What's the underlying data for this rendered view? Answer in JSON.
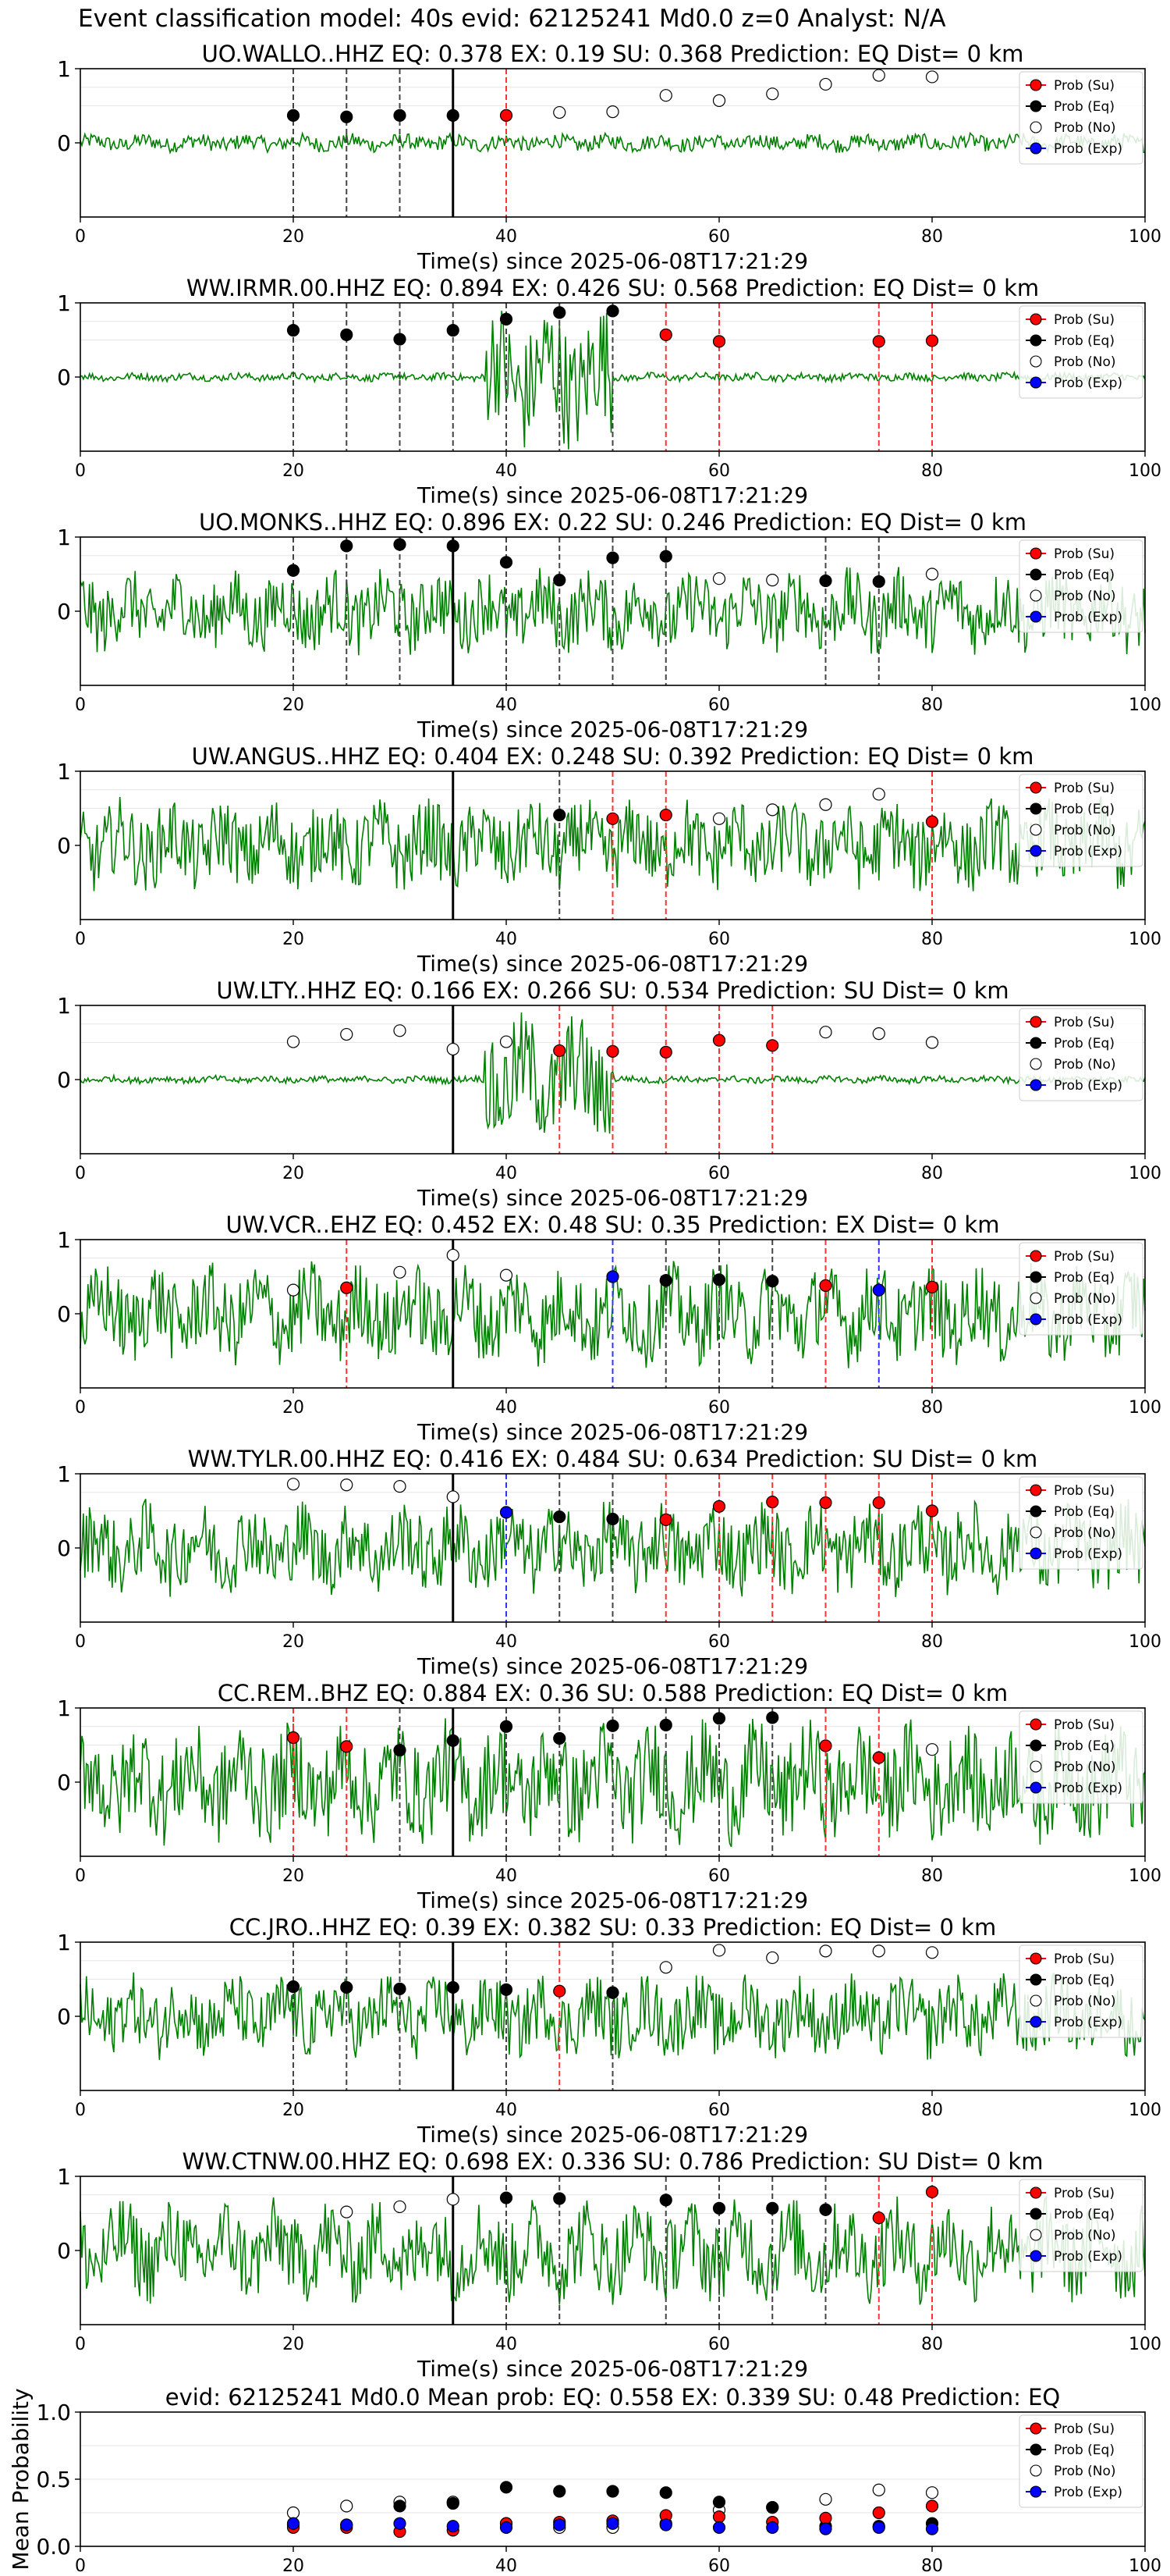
{
  "figure": {
    "suptitle": "Event classification model: 40s evid: 62125241 Md0.0 z=0 Analyst: N/A"
  },
  "legend_labels": [
    "Prob (Su)",
    "Prob (Eq)",
    "Prob (No)",
    "Prob (Exp)"
  ],
  "colors": {
    "su": "#ff0000",
    "eq": "#000000",
    "no": "#ffffff",
    "exp": "#0000ff",
    "waveform": "#008000"
  },
  "chart_data": [
    {
      "type": "line",
      "title": "UO.WALLO..HHZ   EQ: 0.378  EX: 0.19  SU: 0.368   Prediction: EQ    Dist= 0 km",
      "xlabel": "Time(s) since 2025-06-08T17:21:29",
      "xlim": [
        0,
        100
      ],
      "ylim": [
        -1,
        1
      ],
      "xticks": [
        0,
        20,
        40,
        60,
        80,
        100
      ],
      "yticks": [
        0,
        1
      ],
      "waveform_amplitude": 0.1,
      "origin_time": 35,
      "x": [
        20,
        25,
        30,
        35,
        40,
        45,
        50,
        55,
        60,
        65,
        70,
        75,
        80
      ],
      "prediction_class": [
        "Eq",
        "Eq",
        "Eq",
        "Eq",
        "Su",
        "No",
        "No",
        "No",
        "No",
        "No",
        "No",
        "No",
        "No"
      ],
      "prediction_prob": [
        0.37,
        0.35,
        0.37,
        0.37,
        0.37,
        0.41,
        0.42,
        0.64,
        0.57,
        0.66,
        0.79,
        0.91,
        0.89
      ]
    },
    {
      "type": "line",
      "title": "WW.IRMR.00.HHZ   EQ: 0.894  EX: 0.426  SU: 0.568   Prediction: EQ    Dist= 0 km",
      "xlabel": "Time(s) since 2025-06-08T17:21:29",
      "xlim": [
        0,
        100
      ],
      "ylim": [
        -1,
        1
      ],
      "xticks": [
        0,
        20,
        40,
        60,
        80,
        100
      ],
      "yticks": [
        0,
        1
      ],
      "waveform_amplitude": 0.8,
      "origin_time": null,
      "x": [
        20,
        25,
        30,
        35,
        40,
        45,
        50,
        55,
        60,
        75,
        80
      ],
      "prediction_class": [
        "Eq",
        "Eq",
        "Eq",
        "Eq",
        "Eq",
        "Eq",
        "Eq",
        "Su",
        "Su",
        "Su",
        "Su"
      ],
      "prediction_prob": [
        0.63,
        0.57,
        0.51,
        0.63,
        0.78,
        0.87,
        0.89,
        0.57,
        0.48,
        0.48,
        0.49
      ]
    },
    {
      "type": "line",
      "title": "UO.MONKS..HHZ   EQ: 0.896  EX: 0.22  SU: 0.246   Prediction: EQ    Dist= 0 km",
      "xlabel": "Time(s) since 2025-06-08T17:21:29",
      "xlim": [
        0,
        100
      ],
      "ylim": [
        -1,
        1
      ],
      "xticks": [
        0,
        20,
        40,
        60,
        80,
        100
      ],
      "yticks": [
        0,
        1
      ],
      "waveform_amplitude": 0.45,
      "origin_time": 35,
      "x": [
        20,
        25,
        30,
        35,
        40,
        45,
        50,
        55,
        60,
        65,
        70,
        75,
        80
      ],
      "prediction_class": [
        "Eq",
        "Eq",
        "Eq",
        "Eq",
        "Eq",
        "Eq",
        "Eq",
        "Eq",
        "No",
        "No",
        "Eq",
        "Eq",
        "No"
      ],
      "prediction_prob": [
        0.55,
        0.88,
        0.9,
        0.88,
        0.66,
        0.42,
        0.72,
        0.74,
        0.44,
        0.42,
        0.41,
        0.4,
        0.5
      ]
    },
    {
      "type": "line",
      "title": "UW.ANGUS..HHZ   EQ: 0.404  EX: 0.248  SU: 0.392   Prediction: EQ    Dist= 0 km",
      "xlabel": "Time(s) since 2025-06-08T17:21:29",
      "xlim": [
        0,
        100
      ],
      "ylim": [
        -1,
        1
      ],
      "xticks": [
        0,
        20,
        40,
        60,
        80,
        100
      ],
      "yticks": [
        0,
        1
      ],
      "waveform_amplitude": 0.5,
      "origin_time": 35,
      "x": [
        45,
        50,
        55,
        60,
        65,
        70,
        75,
        80
      ],
      "prediction_class": [
        "Eq",
        "Su",
        "Su",
        "No",
        "No",
        "No",
        "No",
        "Su"
      ],
      "prediction_prob": [
        0.41,
        0.36,
        0.41,
        0.36,
        0.48,
        0.55,
        0.69,
        0.32
      ]
    },
    {
      "type": "line",
      "title": "UW.LTY..HHZ   EQ: 0.166  EX: 0.266  SU: 0.534   Prediction: SU    Dist= 0 km",
      "xlabel": "Time(s) since 2025-06-08T17:21:29",
      "xlim": [
        0,
        100
      ],
      "ylim": [
        -1,
        1
      ],
      "xticks": [
        0,
        20,
        40,
        60,
        80,
        100
      ],
      "yticks": [
        0,
        1
      ],
      "waveform_amplitude": 0.7,
      "origin_time": 35,
      "x": [
        20,
        25,
        30,
        35,
        40,
        45,
        50,
        55,
        60,
        65,
        70,
        75,
        80
      ],
      "prediction_class": [
        "No",
        "No",
        "No",
        "No",
        "No",
        "Su",
        "Su",
        "Su",
        "Su",
        "Su",
        "No",
        "No",
        "No"
      ],
      "prediction_prob": [
        0.51,
        0.61,
        0.66,
        0.41,
        0.51,
        0.39,
        0.38,
        0.37,
        0.53,
        0.46,
        0.64,
        0.62,
        0.5
      ]
    },
    {
      "type": "line",
      "title": "UW.VCR..EHZ   EQ: 0.452  EX: 0.48  SU: 0.35   Prediction: EX    Dist= 0 km",
      "xlabel": "Time(s) since 2025-06-08T17:21:29",
      "xlim": [
        0,
        100
      ],
      "ylim": [
        -1,
        1
      ],
      "xticks": [
        0,
        20,
        40,
        60,
        80,
        100
      ],
      "yticks": [
        0,
        1
      ],
      "waveform_amplitude": 0.55,
      "origin_time": 35,
      "x": [
        20,
        25,
        30,
        35,
        40,
        50,
        55,
        60,
        65,
        70,
        75,
        80
      ],
      "prediction_class": [
        "No",
        "Su",
        "No",
        "No",
        "No",
        "Exp",
        "Eq",
        "Eq",
        "Eq",
        "Su",
        "Exp",
        "Su"
      ],
      "prediction_prob": [
        0.32,
        0.35,
        0.56,
        0.79,
        0.52,
        0.5,
        0.45,
        0.46,
        0.44,
        0.38,
        0.32,
        0.36
      ]
    },
    {
      "type": "line",
      "title": "WW.TYLR.00.HHZ   EQ: 0.416  EX: 0.484  SU: 0.634   Prediction: SU    Dist= 0 km",
      "xlabel": "Time(s) since 2025-06-08T17:21:29",
      "xlim": [
        0,
        100
      ],
      "ylim": [
        -1,
        1
      ],
      "xticks": [
        0,
        20,
        40,
        60,
        80,
        100
      ],
      "yticks": [
        0,
        1
      ],
      "waveform_amplitude": 0.5,
      "origin_time": 35,
      "x": [
        20,
        25,
        30,
        35,
        40,
        45,
        50,
        55,
        60,
        65,
        70,
        75,
        80
      ],
      "prediction_class": [
        "No",
        "No",
        "No",
        "No",
        "Exp",
        "Eq",
        "Eq",
        "Su",
        "Su",
        "Su",
        "Su",
        "Su",
        "Su"
      ],
      "prediction_prob": [
        0.86,
        0.85,
        0.83,
        0.69,
        0.48,
        0.42,
        0.39,
        0.38,
        0.56,
        0.62,
        0.61,
        0.61,
        0.5
      ]
    },
    {
      "type": "line",
      "title": "CC.REM..BHZ   EQ: 0.884  EX: 0.36  SU: 0.588   Prediction: EQ    Dist= 0 km",
      "xlabel": "Time(s) since 2025-06-08T17:21:29",
      "xlim": [
        0,
        100
      ],
      "ylim": [
        -1,
        1
      ],
      "xticks": [
        0,
        20,
        40,
        60,
        80,
        100
      ],
      "yticks": [
        0,
        1
      ],
      "waveform_amplitude": 0.65,
      "origin_time": 35,
      "x": [
        20,
        25,
        30,
        35,
        40,
        45,
        50,
        55,
        60,
        65,
        70,
        75,
        80
      ],
      "prediction_class": [
        "Su",
        "Su",
        "Eq",
        "Eq",
        "Eq",
        "Eq",
        "Eq",
        "Eq",
        "Eq",
        "Eq",
        "Su",
        "Su",
        "No"
      ],
      "prediction_prob": [
        0.6,
        0.48,
        0.43,
        0.56,
        0.75,
        0.59,
        0.76,
        0.77,
        0.86,
        0.87,
        0.49,
        0.33,
        0.44
      ]
    },
    {
      "type": "line",
      "title": "CC.JRO..HHZ   EQ: 0.39  EX: 0.382  SU: 0.33   Prediction: EQ    Dist= 0 km",
      "xlabel": "Time(s) since 2025-06-08T17:21:29",
      "xlim": [
        0,
        100
      ],
      "ylim": [
        -1,
        1
      ],
      "xticks": [
        0,
        20,
        40,
        60,
        80,
        100
      ],
      "yticks": [
        0,
        1
      ],
      "waveform_amplitude": 0.45,
      "origin_time": 35,
      "x": [
        20,
        25,
        30,
        35,
        40,
        45,
        50,
        55,
        60,
        65,
        70,
        75,
        80
      ],
      "prediction_class": [
        "Eq",
        "Eq",
        "Eq",
        "Eq",
        "Eq",
        "Su",
        "Eq",
        "No",
        "No",
        "No",
        "No",
        "No",
        "No"
      ],
      "prediction_prob": [
        0.4,
        0.39,
        0.37,
        0.39,
        0.36,
        0.34,
        0.32,
        0.66,
        0.89,
        0.79,
        0.88,
        0.88,
        0.86
      ]
    },
    {
      "type": "line",
      "title": "WW.CTNW.00.HHZ   EQ: 0.698  EX: 0.336  SU: 0.786   Prediction: SU    Dist= 0 km",
      "xlabel": "Time(s) since 2025-06-08T17:21:29",
      "xlim": [
        0,
        100
      ],
      "ylim": [
        -1,
        1
      ],
      "xticks": [
        0,
        20,
        40,
        60,
        80,
        100
      ],
      "yticks": [
        0,
        1
      ],
      "waveform_amplitude": 0.55,
      "origin_time": 35,
      "x": [
        25,
        30,
        35,
        40,
        45,
        55,
        60,
        65,
        70,
        75,
        80
      ],
      "prediction_class": [
        "No",
        "No",
        "No",
        "Eq",
        "Eq",
        "Eq",
        "Eq",
        "Eq",
        "Eq",
        "Su",
        "Su"
      ],
      "prediction_prob": [
        0.52,
        0.59,
        0.69,
        0.71,
        0.7,
        0.68,
        0.57,
        0.57,
        0.55,
        0.44,
        0.79
      ]
    },
    {
      "type": "scatter",
      "title": "evid: 62125241  Md0.0   Mean prob:   EQ: 0.558  EX: 0.339  SU: 0.48   Prediction: EQ",
      "ylabel": "Mean Probability",
      "xlim": [
        0,
        100
      ],
      "ylim": [
        0,
        1
      ],
      "xticks": [
        0,
        20,
        40,
        60,
        80,
        100
      ],
      "yticks": [
        0.0,
        0.5,
        1.0
      ],
      "x": [
        20,
        25,
        30,
        35,
        40,
        45,
        50,
        55,
        60,
        65,
        70,
        75,
        80
      ],
      "series": [
        {
          "name": "Prob (No)",
          "values": [
            0.25,
            0.3,
            0.33,
            0.33,
            0.17,
            0.14,
            0.14,
            0.17,
            0.27,
            0.29,
            0.35,
            0.42,
            0.4
          ]
        },
        {
          "name": "Prob (Eq)",
          "values": [
            0.16,
            0.16,
            0.3,
            0.32,
            0.44,
            0.41,
            0.41,
            0.4,
            0.33,
            0.29,
            0.15,
            0.15,
            0.17
          ]
        },
        {
          "name": "Prob (Su)",
          "values": [
            0.14,
            0.14,
            0.11,
            0.12,
            0.17,
            0.18,
            0.19,
            0.23,
            0.22,
            0.18,
            0.21,
            0.25,
            0.3
          ]
        },
        {
          "name": "Prob (Exp)",
          "values": [
            0.17,
            0.16,
            0.17,
            0.15,
            0.14,
            0.16,
            0.17,
            0.16,
            0.14,
            0.14,
            0.13,
            0.14,
            0.13
          ]
        }
      ]
    }
  ]
}
